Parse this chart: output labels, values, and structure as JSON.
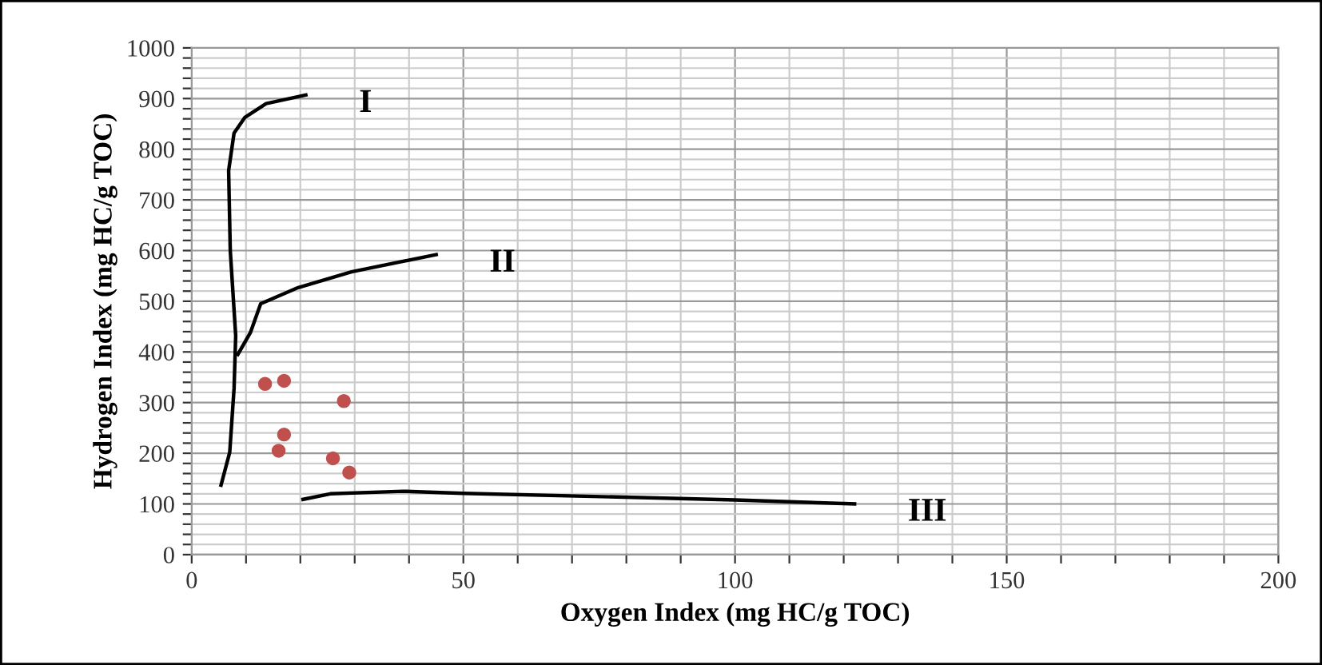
{
  "chart_data": {
    "type": "scatter",
    "xlabel": "Oxygen Index (mg HC/g TOC)",
    "ylabel": "Hydrogen Index (mg HC/g TOC)",
    "series": [
      {
        "marker": "circle",
        "color": "#c0504d",
        "x": [
          13.5,
          17,
          28,
          17,
          16,
          26,
          29
        ],
        "values": [
          337,
          343,
          303,
          237,
          205,
          190,
          162
        ]
      },
      {
        "type": "line",
        "name": "I",
        "color": "#000000",
        "x": [
          5.4,
          7,
          7.8,
          8.1,
          7.1,
          6.8,
          7.8,
          9.8,
          13.7,
          21
        ],
        "values": [
          137,
          202,
          328,
          432,
          600,
          758,
          832,
          863,
          890,
          907
        ]
      },
      {
        "type": "line",
        "name": "II",
        "color": "#000000",
        "x": [
          8.5,
          10.8,
          12.7,
          19.6,
          29.4,
          45
        ],
        "values": [
          395,
          438,
          495,
          527,
          558,
          592
        ]
      },
      {
        "type": "line",
        "name": "III",
        "color": "#000000",
        "x": [
          20.5,
          25.5,
          39,
          50,
          100,
          122
        ],
        "values": [
          109,
          120,
          125,
          121,
          108,
          100
        ]
      }
    ],
    "xlim": [
      0,
      200
    ],
    "ylim": [
      0,
      1000
    ],
    "xticks": [
      0,
      {
        "value": 10,
        "label": null
      },
      {
        "value": 20,
        "label": null
      },
      {
        "value": 30,
        "label": null
      },
      {
        "value": 40,
        "label": null
      },
      50,
      {
        "value": 60,
        "label": null
      },
      {
        "value": 70,
        "label": null
      },
      {
        "value": 80,
        "label": null
      },
      {
        "value": 90,
        "label": null
      },
      100,
      {
        "value": 110,
        "label": null
      },
      {
        "value": 120,
        "label": null
      },
      {
        "value": 130,
        "label": null
      },
      {
        "value": 140,
        "label": null
      },
      150,
      {
        "value": 160,
        "label": null
      },
      {
        "value": 170,
        "label": null
      },
      {
        "value": 180,
        "label": null
      },
      {
        "value": 190,
        "label": null
      },
      200
    ],
    "yticks": [
      0,
      {
        "value": 20,
        "label": null
      },
      {
        "value": 40,
        "label": null
      },
      {
        "value": 60,
        "label": null
      },
      {
        "value": 80,
        "label": null
      },
      100,
      {
        "value": 120,
        "label": null
      },
      {
        "value": 140,
        "label": null
      },
      {
        "value": 160,
        "label": null
      },
      {
        "value": 180,
        "label": null
      },
      200,
      {
        "value": 220,
        "label": null
      },
      {
        "value": 240,
        "label": null
      },
      {
        "value": 260,
        "label": null
      },
      {
        "value": 280,
        "label": null
      },
      300,
      {
        "value": 320,
        "label": null
      },
      {
        "value": 340,
        "label": null
      },
      {
        "value": 360,
        "label": null
      },
      {
        "value": 380,
        "label": null
      },
      400,
      {
        "value": 420,
        "label": null
      },
      {
        "value": 440,
        "label": null
      },
      {
        "value": 460,
        "label": null
      },
      {
        "value": 480,
        "label": null
      },
      500,
      {
        "value": 520,
        "label": null
      },
      {
        "value": 540,
        "label": null
      },
      {
        "value": 560,
        "label": null
      },
      {
        "value": 580,
        "label": null
      },
      600,
      {
        "value": 620,
        "label": null
      },
      {
        "value": 640,
        "label": null
      },
      {
        "value": 660,
        "label": null
      },
      {
        "value": 680,
        "label": null
      },
      700,
      {
        "value": 720,
        "label": null
      },
      {
        "value": 740,
        "label": null
      },
      {
        "value": 760,
        "label": null
      },
      {
        "value": 780,
        "label": null
      },
      800,
      {
        "value": 820,
        "label": null
      },
      {
        "value": 840,
        "label": null
      },
      {
        "value": 860,
        "label": null
      },
      {
        "value": 880,
        "label": null
      },
      900,
      {
        "value": 920,
        "label": null
      },
      {
        "value": 940,
        "label": null
      },
      {
        "value": 960,
        "label": null
      },
      {
        "value": 980,
        "label": null
      },
      1000
    ],
    "grid": true
  }
}
